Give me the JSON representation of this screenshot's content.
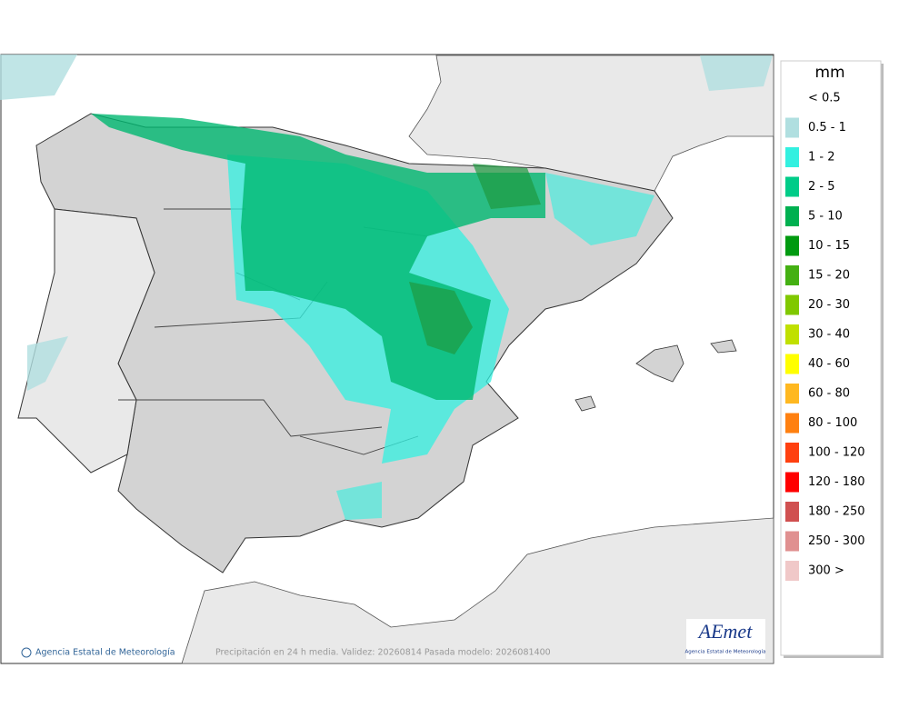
{
  "legend": {
    "title": "mm",
    "items": [
      {
        "label": "< 0.5"
      },
      {
        "label": "0.5 - 1",
        "color": "#b0dfe0"
      },
      {
        "label": "1 - 2",
        "color": "#33f0e0"
      },
      {
        "label": "2 - 5",
        "color": "#00cc88"
      },
      {
        "label": "5 - 10",
        "color": "#00b050"
      },
      {
        "label": "10 - 15",
        "color": "#009a10"
      },
      {
        "label": "15 - 20",
        "color": "#44b012"
      },
      {
        "label": "20 - 30",
        "color": "#80c800"
      },
      {
        "label": "30 - 40",
        "color": "#c0e000"
      },
      {
        "label": "40 - 60",
        "color": "#ffff00"
      },
      {
        "label": "60 - 80",
        "color": "#ffb820"
      },
      {
        "label": "80 - 100",
        "color": "#ff8010"
      },
      {
        "label": "100 - 120",
        "color": "#ff4010"
      },
      {
        "label": "120 - 180",
        "color": "#ff0000"
      },
      {
        "label": "180 - 250",
        "color": "#d05050"
      },
      {
        "label": "250 - 300",
        "color": "#e09090"
      },
      {
        "label": "300 >",
        "color": "#f0c8c8"
      }
    ]
  },
  "footer": {
    "credit": "Agencia Estatal de Meteorología",
    "caption": "Precipitación en 24 h media. Validez: 20260814 Pasada modelo: 2026081400"
  },
  "logo": {
    "name": "AEmet",
    "subtitle": "Agencia Estatal de Meteorología"
  }
}
